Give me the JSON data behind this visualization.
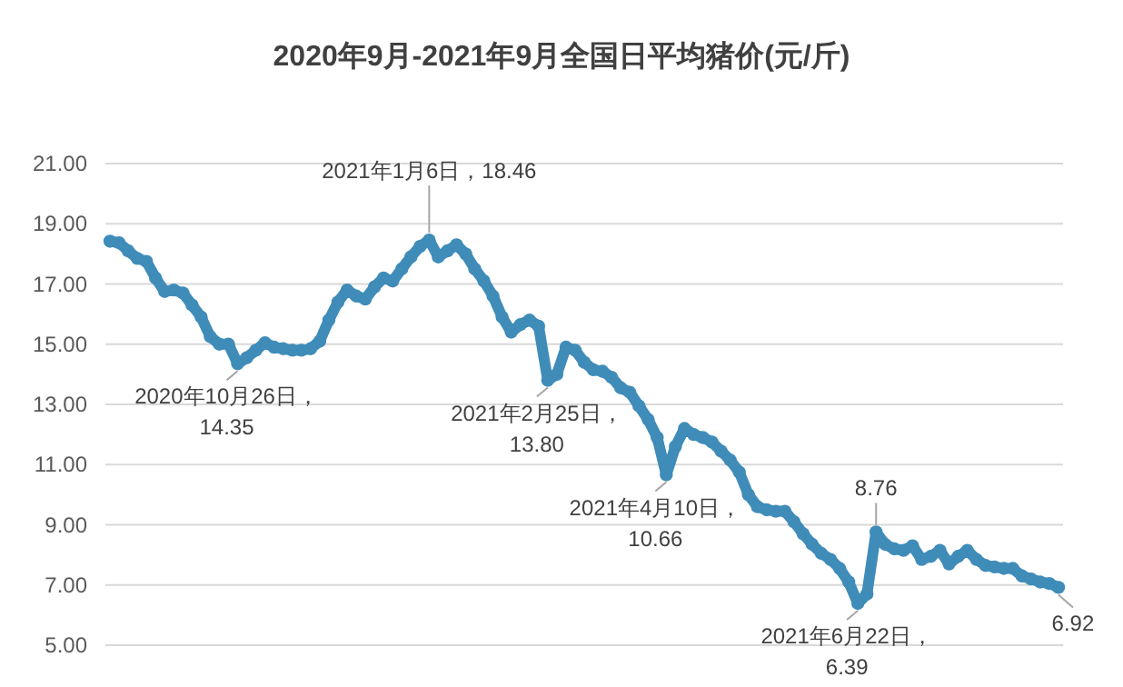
{
  "chart_data": {
    "type": "line",
    "title": "2020年9月-2021年9月全国日平均猪价(元/斤)",
    "categories": [
      null,
      null,
      null,
      null,
      null,
      null,
      null,
      null,
      null,
      null,
      null,
      null,
      null,
      null,
      null,
      null,
      null,
      null,
      null,
      null,
      null,
      null,
      null,
      null,
      null,
      null,
      null,
      null,
      null,
      null,
      null,
      null,
      null,
      null,
      null,
      null,
      null,
      null,
      null,
      null,
      null,
      null,
      null,
      null,
      null,
      null,
      null,
      null,
      null,
      null,
      null,
      null,
      null,
      null,
      null,
      null,
      null,
      null,
      null,
      null,
      null,
      null,
      null,
      null,
      null,
      null,
      null,
      null,
      null,
      null,
      null,
      null,
      null,
      null,
      null,
      null,
      null,
      null,
      null,
      null,
      null,
      null,
      null,
      null,
      null,
      null,
      null,
      null,
      null,
      null,
      null,
      null,
      null,
      null,
      null,
      null,
      null,
      null,
      null,
      null,
      null,
      null,
      null,
      null,
      null
    ],
    "series": [
      {
        "color": "#3f8cb9",
        "values": [
          18.42,
          18.37,
          18.1,
          17.85,
          17.75,
          17.2,
          16.75,
          16.8,
          16.7,
          16.3,
          15.9,
          15.25,
          15.0,
          15.0,
          14.35,
          14.55,
          14.8,
          15.05,
          14.9,
          14.85,
          14.8,
          14.8,
          14.85,
          15.1,
          15.8,
          16.4,
          16.8,
          16.6,
          16.5,
          16.9,
          17.2,
          17.1,
          17.5,
          17.9,
          18.25,
          18.46,
          17.9,
          18.1,
          18.3,
          18.0,
          17.5,
          17.1,
          16.6,
          15.9,
          15.4,
          15.65,
          15.8,
          15.6,
          13.8,
          14.0,
          14.9,
          14.8,
          14.4,
          14.15,
          14.1,
          13.9,
          13.55,
          13.4,
          12.95,
          12.5,
          11.9,
          10.66,
          11.6,
          12.2,
          12.0,
          11.9,
          11.75,
          11.45,
          11.15,
          10.75,
          10.0,
          9.6,
          9.5,
          9.45,
          9.45,
          9.1,
          8.7,
          8.35,
          8.05,
          7.85,
          7.55,
          7.1,
          6.39,
          6.7,
          8.76,
          8.35,
          8.2,
          8.15,
          8.3,
          7.85,
          7.95,
          8.15,
          7.7,
          7.95,
          8.15,
          7.85,
          7.65,
          7.6,
          7.55,
          7.55,
          7.3,
          7.2,
          7.1,
          7.05,
          6.92
        ]
      }
    ],
    "ylim": [
      5,
      21
    ],
    "yticks": [
      {
        "value": 5,
        "label": "5.00"
      },
      {
        "value": 7,
        "label": "7.00"
      },
      {
        "value": 9,
        "label": "9.00"
      },
      {
        "value": 11,
        "label": "11.00"
      },
      {
        "value": 13,
        "label": "13.00"
      },
      {
        "value": 15,
        "label": "15.00"
      },
      {
        "value": 17,
        "label": "17.00"
      },
      {
        "value": 19,
        "label": "19.00"
      },
      {
        "value": 21,
        "label": "21.00"
      }
    ],
    "grid": "y",
    "marker": "circle",
    "tick_labels": "y",
    "annotations": [
      {
        "text": "2020年10月26日，\n14.35",
        "y": 14.35
      },
      {
        "text": "2021年1月6日，18.46",
        "y": 18.46
      },
      {
        "text": "2021年2月25日，\n13.80",
        "y": 13.8
      },
      {
        "text": "2021年4月10日，\n10.66",
        "y": 10.66
      },
      {
        "text": "2021年6月22日，\n6.39",
        "y": 6.39
      },
      {
        "text": "8.76",
        "y": 8.76
      },
      {
        "text": "6.92",
        "y": 6.92
      }
    ]
  }
}
